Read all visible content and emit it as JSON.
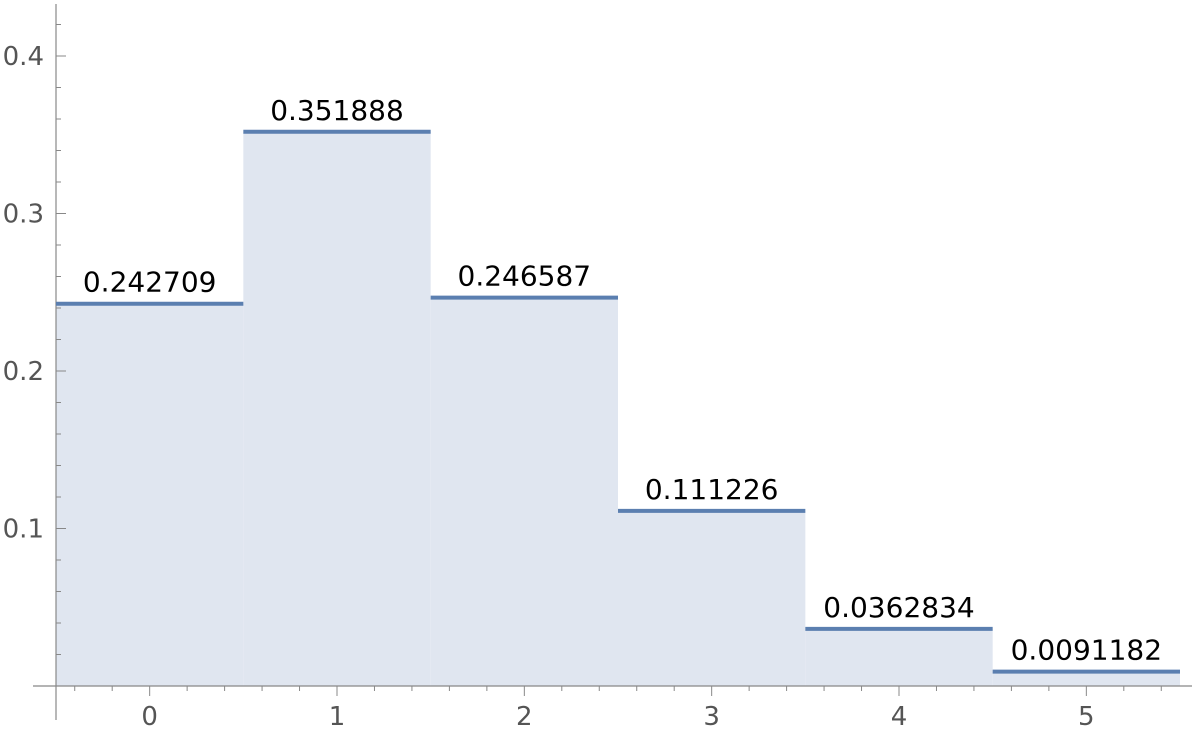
{
  "chart_data": {
    "type": "bar",
    "style": "step-histogram",
    "categories": [
      "0",
      "1",
      "2",
      "3",
      "4",
      "5"
    ],
    "values": [
      0.242709,
      0.351888,
      0.246587,
      0.111226,
      0.0362834,
      0.0091182
    ],
    "value_labels": [
      "0.242709",
      "0.351888",
      "0.246587",
      "0.111226",
      "0.0362834",
      "0.0091182"
    ],
    "x": [
      0,
      1,
      2,
      3,
      4,
      5
    ],
    "xlim": [
      -0.5,
      5.5
    ],
    "ylim": [
      0,
      0.43
    ],
    "yticks": [
      0.1,
      0.2,
      0.3,
      0.4
    ],
    "ytick_labels": [
      "0.1",
      "0.2",
      "0.3",
      "0.4"
    ],
    "title": "",
    "xlabel": "",
    "ylabel": "",
    "grid": false,
    "colors": {
      "line": "#5b7fb0",
      "fill": "#e0e6f0",
      "axis": "#888888",
      "tick_text": "#555555",
      "label_text": "#000000"
    }
  }
}
